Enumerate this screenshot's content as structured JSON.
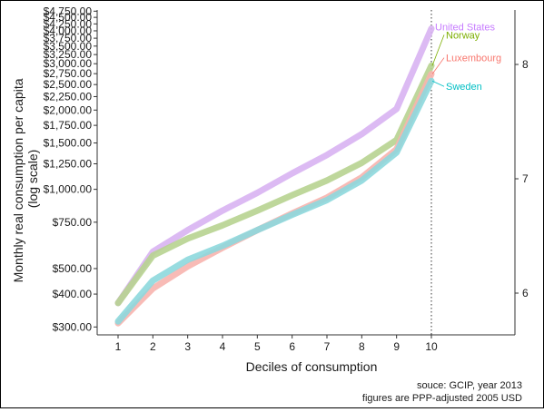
{
  "chart_data": {
    "type": "line",
    "title": "",
    "xlabel": "Deciles of consumption",
    "ylabel_lines": [
      "Monthly real consumption per capita",
      "(log scale)"
    ],
    "x": [
      1,
      2,
      3,
      4,
      5,
      6,
      7,
      8,
      9,
      10
    ],
    "x_ticks": [
      "1",
      "2",
      "3",
      "4",
      "5",
      "6",
      "7",
      "8",
      "9",
      "10"
    ],
    "xlim": [
      0.4,
      12.4
    ],
    "ylim": [
      280,
      4800
    ],
    "y_scale": "log",
    "y_ticks": [
      300,
      400,
      500,
      750,
      1000,
      1250,
      1500,
      1750,
      2000,
      2250,
      2500,
      2750,
      3000,
      3250,
      3500,
      3750,
      4000,
      4250,
      4500,
      4750
    ],
    "y_tick_labels": [
      "$300.00",
      "$400.00",
      "$500.00",
      "$750.00",
      "$1,000.00",
      "$1,250.00",
      "$1,500.00",
      "$1,750.00",
      "$2,000.00",
      "$2,250.00",
      "$2,500.00",
      "$2,750.00",
      "$3,000.00",
      "$3,250.00",
      "$3,500.00",
      "$3,750.00",
      "$4,000.00",
      "$4,250.00",
      "$4,500.00",
      "$4,750.00"
    ],
    "y2_scale": "natural-log",
    "y2_ticks": [
      6,
      7,
      8
    ],
    "y2_tick_labels": [
      "6",
      "7",
      "8"
    ],
    "vline_x": 10,
    "grid": false,
    "legend": "direct-labels-right",
    "series": [
      {
        "name": "United States",
        "color": "#d8b2f2",
        "label_color": "#c77cff",
        "values": [
          370,
          580,
          700,
          830,
          970,
          1150,
          1350,
          1620,
          2020,
          4080
        ]
      },
      {
        "name": "Norway",
        "color": "#b7d390",
        "label_color": "#7cae00",
        "values": [
          370,
          560,
          650,
          730,
          830,
          950,
          1080,
          1260,
          1540,
          2950
        ]
      },
      {
        "name": "Luxembourg",
        "color": "#f7b4ae",
        "label_color": "#f8766d",
        "values": [
          310,
          420,
          510,
          600,
          700,
          810,
          930,
          1110,
          1420,
          2740
        ]
      },
      {
        "name": "Sweden",
        "color": "#8dd8dd",
        "label_color": "#00bfc4",
        "values": [
          315,
          450,
          540,
          610,
          700,
          800,
          910,
          1080,
          1380,
          2580
        ]
      }
    ]
  },
  "caption": {
    "line1": "souce: GCIP, year 2013",
    "line2": "figures are PPP-adjusted 2005 USD"
  }
}
